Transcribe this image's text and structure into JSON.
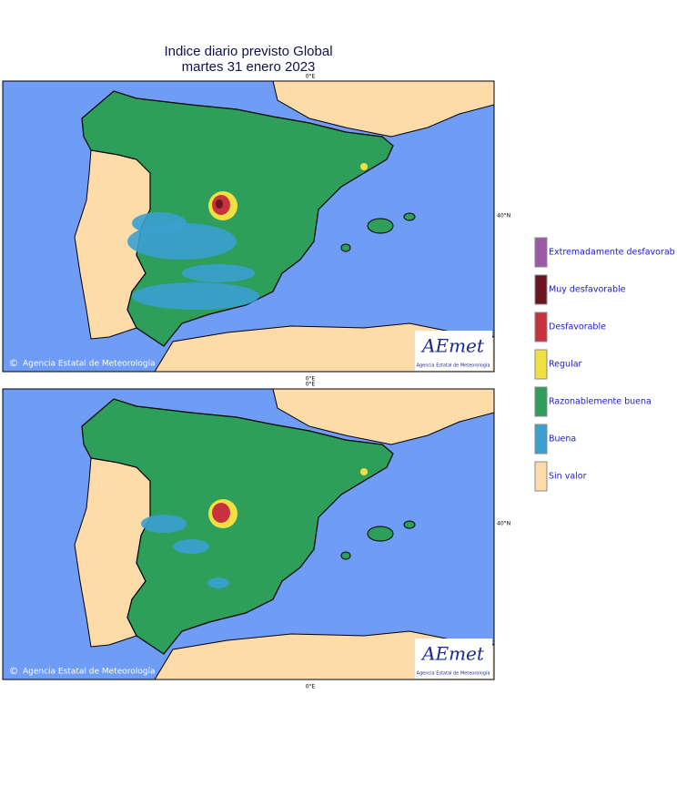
{
  "title": "Indice diario previsto Global",
  "subtitle": "martes 31 enero 2023",
  "maps": [
    {
      "top_label": "0°E",
      "bottom_label": "0°E",
      "lat_label": "40°N",
      "credit_symbol": "©",
      "credit": "Agencia Estatal de Meteorología",
      "logo": "AEmet",
      "logo_sub": "Agencia Estatal de Meteorología"
    },
    {
      "top_label": "0°E",
      "bottom_label": "0°E",
      "lat_label": "40°N",
      "credit_symbol": "©",
      "credit": "Agencia Estatal de Meteorología",
      "logo": "AEmet",
      "logo_sub": "Agencia Estatal de Meteorología"
    }
  ],
  "legend": [
    {
      "label": "Extremadamente desfavorab",
      "color": "#9b59a8"
    },
    {
      "label": "Muy desfavorable",
      "color": "#6b1520"
    },
    {
      "label": "Desfavorable",
      "color": "#c8323e"
    },
    {
      "label": "Regular",
      "color": "#f0e040"
    },
    {
      "label": "Razonablemente buena",
      "color": "#2e9e5b"
    },
    {
      "label": "Buena",
      "color": "#3aa0d0"
    },
    {
      "label": "Sin valor",
      "color": "#fddcaa"
    }
  ]
}
